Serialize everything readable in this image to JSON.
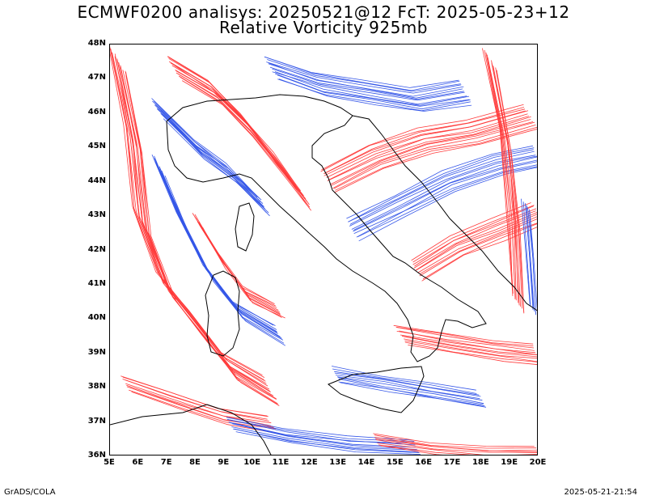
{
  "title_line1": "ECMWF0200 analisys: 20250521@12 FcT: 2025-05-23+12",
  "title_line2": "Relative Vorticity 925mb",
  "map": {
    "extent": {
      "lon_min": 5,
      "lon_max": 20,
      "lat_min": 36,
      "lat_max": 48
    },
    "lat_labels": [
      "48N",
      "47N",
      "46N",
      "45N",
      "44N",
      "43N",
      "42N",
      "41N",
      "40N",
      "39N",
      "38N",
      "37N",
      "36N"
    ],
    "lat_values": [
      48,
      47,
      46,
      45,
      44,
      43,
      42,
      41,
      40,
      39,
      38,
      37,
      36
    ],
    "lon_labels": [
      "5E",
      "6E",
      "7E",
      "8E",
      "9E",
      "10E",
      "11E",
      "12E",
      "13E",
      "14E",
      "15E",
      "16E",
      "17E",
      "18E",
      "19E",
      "20E"
    ],
    "lon_values": [
      5,
      6,
      7,
      8,
      9,
      10,
      11,
      12,
      13,
      14,
      15,
      16,
      17,
      18,
      19,
      20
    ],
    "colors": {
      "positive": "#ff3b3b",
      "negative": "#3456e8",
      "coast": "#000000",
      "background": "#ffffff"
    }
  },
  "footer": {
    "left": "GrADS/COLA",
    "right": "2025-05-21-21:54"
  }
}
